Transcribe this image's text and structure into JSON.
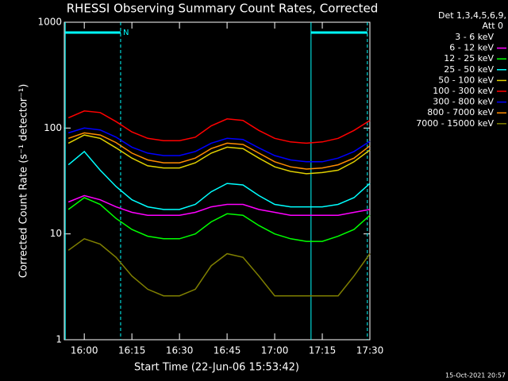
{
  "chart_data": {
    "type": "line",
    "title": "RHESSI Observing Summary Count Rates, Corrected",
    "xlabel": "Start Time (22-Jun-06 15:53:42)",
    "ylabel": "Corrected Count Rate (s⁻¹ detector⁻¹)",
    "legend_title": [
      "Det 1,3,4,5,6,9,",
      "Att 0"
    ],
    "legend": "outside-right",
    "footer": "15-Oct-2021 20:57",
    "log_y": true,
    "xlim": [
      "15:53:42",
      "17:30"
    ],
    "xticks": [
      "16:00",
      "16:15",
      "16:30",
      "16:45",
      "17:00",
      "17:15",
      "17:30"
    ],
    "ylim": [
      1,
      1000
    ],
    "yticks": [
      1,
      10,
      100,
      1000
    ],
    "intervals": [
      {
        "start": "15:54:00",
        "end": "16:11:27",
        "label": "N"
      },
      {
        "start": "17:11:27",
        "end": "17:29:12"
      }
    ],
    "x": [
      "15:55",
      "16:00",
      "16:05",
      "16:10",
      "16:15",
      "16:20",
      "16:25",
      "16:30",
      "16:35",
      "16:40",
      "16:45",
      "16:50",
      "16:55",
      "17:00",
      "17:05",
      "17:10",
      "17:15",
      "17:20",
      "17:25",
      "17:30"
    ],
    "series": [
      {
        "name": "3 - 6 keV",
        "color": "#000000",
        "values": [
          7,
          9,
          8,
          6,
          4,
          3,
          2.6,
          2.6,
          3,
          5,
          6.5,
          6,
          4,
          2.6,
          2.6,
          2.6,
          2.6,
          2.6,
          4,
          6.5
        ]
      },
      {
        "name": "6 - 12 keV",
        "color": "#ff00ff",
        "values": [
          20,
          23,
          21,
          18,
          16,
          15,
          15,
          15,
          16,
          18,
          19,
          19,
          17,
          16,
          15,
          15,
          15,
          15,
          16,
          17
        ]
      },
      {
        "name": "12 - 25 keV",
        "color": "#00ff00",
        "values": [
          17,
          22,
          19,
          14,
          11,
          9.5,
          9,
          9,
          10,
          13,
          15.5,
          15,
          12,
          10,
          9,
          8.5,
          8.5,
          9.5,
          11,
          15
        ]
      },
      {
        "name": "25 - 50 keV",
        "color": "#00ffff",
        "values": [
          45,
          60,
          40,
          28,
          21,
          18,
          17,
          17,
          19,
          25,
          30,
          29,
          23,
          19,
          18,
          18,
          18,
          19,
          22,
          30
        ]
      },
      {
        "name": "50 - 100 keV",
        "color": "#e0d000",
        "values": [
          72,
          86,
          80,
          65,
          52,
          44,
          42,
          42,
          47,
          58,
          66,
          64,
          52,
          43,
          39,
          37,
          38,
          40,
          48,
          62
        ]
      },
      {
        "name": "100 - 300 keV",
        "color": "#ff0000",
        "values": [
          125,
          145,
          140,
          115,
          92,
          80,
          76,
          76,
          82,
          105,
          122,
          118,
          95,
          80,
          74,
          72,
          74,
          80,
          95,
          118
        ]
      },
      {
        "name": "300 - 800 keV",
        "color": "#0000ff",
        "values": [
          90,
          100,
          96,
          82,
          66,
          58,
          55,
          55,
          60,
          72,
          80,
          78,
          65,
          55,
          50,
          48,
          48,
          52,
          60,
          75
        ]
      },
      {
        "name": "800 - 7000 keV",
        "color": "#ff8c00",
        "values": [
          80,
          90,
          86,
          73,
          58,
          50,
          47,
          47,
          52,
          64,
          72,
          70,
          58,
          48,
          43,
          41,
          42,
          45,
          52,
          68
        ]
      },
      {
        "name": "7000 - 15000 keV",
        "color": "#808000",
        "values": [
          7,
          9,
          8,
          6,
          4,
          3,
          2.6,
          2.6,
          3,
          5,
          6.5,
          6,
          4,
          2.6,
          2.6,
          2.6,
          2.6,
          2.6,
          4,
          6.5
        ]
      }
    ]
  }
}
